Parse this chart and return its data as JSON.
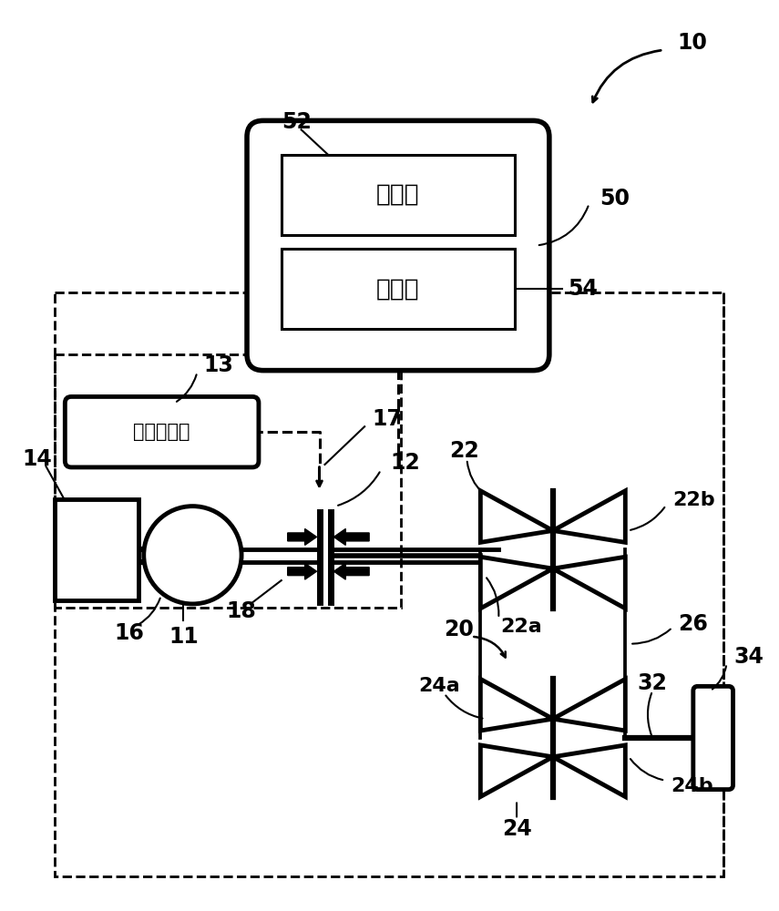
{
  "bg_color": "#ffffff",
  "label_10": "10",
  "label_11": "11",
  "label_12": "12",
  "label_13": "13",
  "label_14": "14",
  "label_16": "16",
  "label_17": "17",
  "label_18": "18",
  "label_20": "20",
  "label_22": "22",
  "label_22a": "22a",
  "label_22b": "22b",
  "label_24": "24",
  "label_24a": "24a",
  "label_24b": "24b",
  "label_26": "26",
  "label_32": "32",
  "label_34": "34",
  "label_50": "50",
  "label_52": "52",
  "label_54": "54",
  "text_controller": "控制器",
  "text_comm": "通信器",
  "text_hydraulic": "液压控制器"
}
